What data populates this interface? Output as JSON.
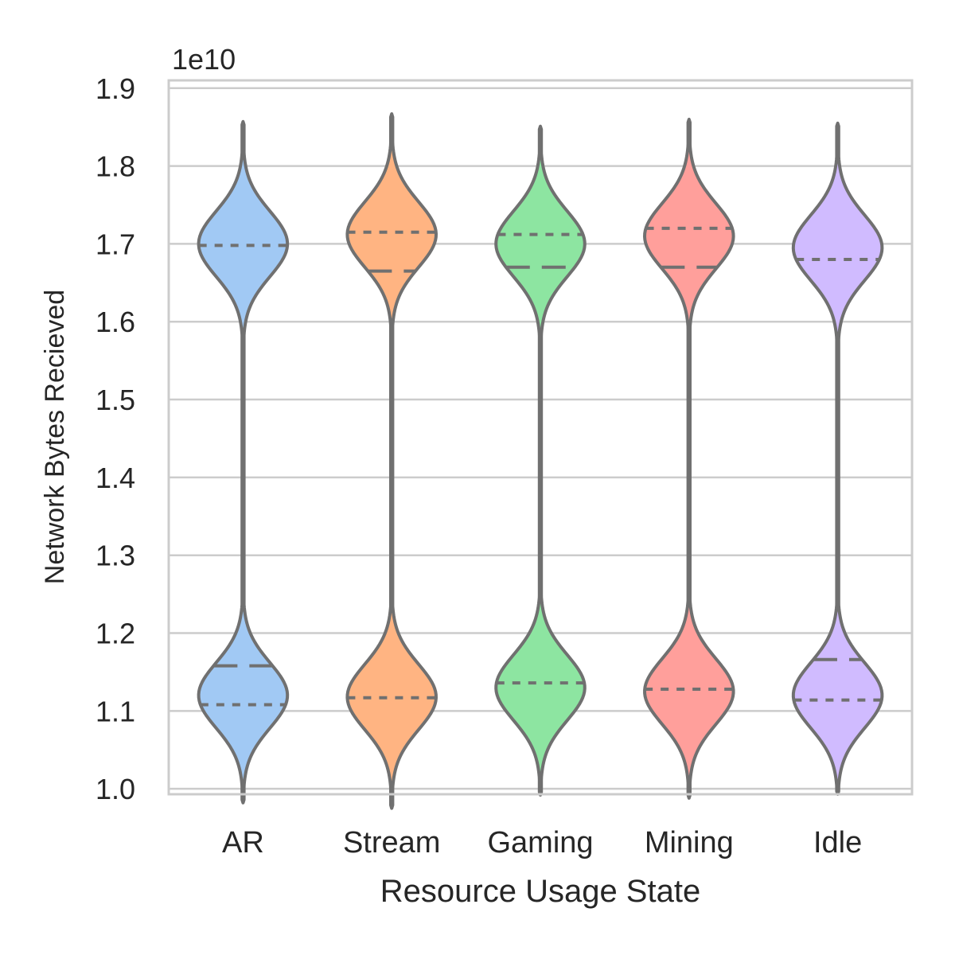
{
  "chart_data": {
    "type": "violin",
    "title": "",
    "xlabel": "Resource Usage State",
    "ylabel": "Network Bytes Recieved",
    "y_offset_label": "1e10",
    "ylim": [
      0.993,
      1.91
    ],
    "yticks": [
      1.0,
      1.1,
      1.2,
      1.3,
      1.4,
      1.5,
      1.6,
      1.7,
      1.8,
      1.9
    ],
    "ytick_labels": [
      "1.0",
      "1.1",
      "1.2",
      "1.3",
      "1.4",
      "1.5",
      "1.6",
      "1.7",
      "1.8",
      "1.9"
    ],
    "grid": "horizontal",
    "categories": [
      "AR",
      "Stream",
      "Gaming",
      "Mining",
      "Idle"
    ],
    "colors": [
      "#a1c9f4",
      "#ffb482",
      "#8de5a1",
      "#ff9f9b",
      "#d0bbff"
    ],
    "outline_color": "#707070",
    "violins": [
      {
        "category": "AR",
        "min": 0.982,
        "max": 1.857,
        "low_mode": 1.12,
        "high_mode": 1.7,
        "q1": 1.108,
        "median": 1.158,
        "q3": 1.698
      },
      {
        "category": "Stream",
        "min": 0.975,
        "max": 1.867,
        "low_mode": 1.118,
        "high_mode": 1.712,
        "q1": 1.117,
        "median": 1.665,
        "q3": 1.715
      },
      {
        "category": "Gaming",
        "min": 0.992,
        "max": 1.851,
        "low_mode": 1.13,
        "high_mode": 1.7,
        "q1": 1.136,
        "median": 1.67,
        "q3": 1.712
      },
      {
        "category": "Mining",
        "min": 0.988,
        "max": 1.86,
        "low_mode": 1.125,
        "high_mode": 1.71,
        "q1": 1.128,
        "median": 1.67,
        "q3": 1.72
      },
      {
        "category": "Idle",
        "min": 0.993,
        "max": 1.855,
        "low_mode": 1.12,
        "high_mode": 1.695,
        "q1": 1.114,
        "median": 1.166,
        "q3": 1.68
      }
    ]
  }
}
